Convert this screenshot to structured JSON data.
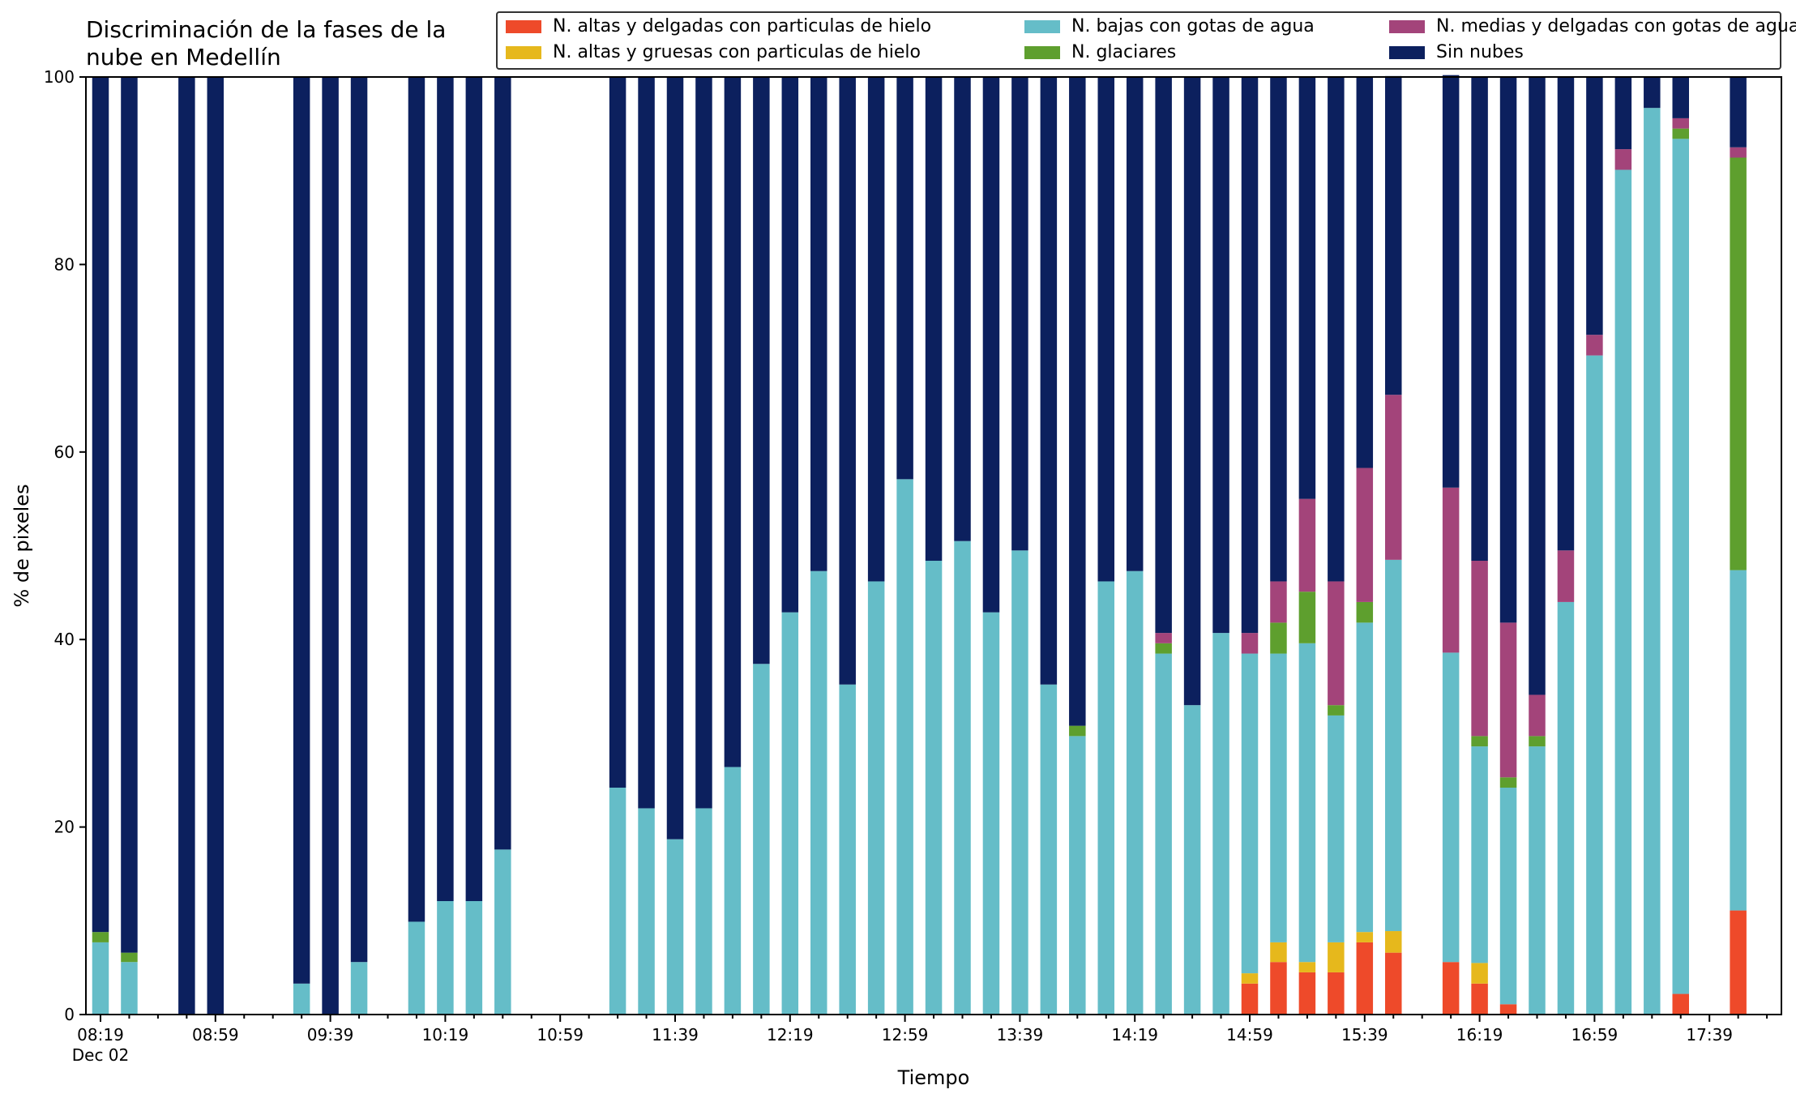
{
  "chart_data": {
    "type": "bar",
    "stacked": true,
    "title": "Discriminación de la fases de la nube en Medellín",
    "xlabel": "Tiempo",
    "ylabel": "% de pixeles",
    "ylim": [
      0,
      100
    ],
    "yticks": [
      0,
      20,
      40,
      60,
      80,
      100
    ],
    "xtick_labels": [
      "08:19",
      "08:59",
      "09:39",
      "10:19",
      "10:59",
      "11:39",
      "12:19",
      "12:59",
      "13:39",
      "14:19",
      "14:59",
      "15:39",
      "16:19",
      "16:59",
      "17:39"
    ],
    "xtick_sublabel": "Dec 02",
    "x_interval_minutes": 10,
    "legend_position": "top",
    "categories": [
      "08:19",
      "08:29",
      "08:49",
      "08:59",
      "09:29",
      "09:39",
      "09:49",
      "10:09",
      "10:19",
      "10:29",
      "10:39",
      "11:19",
      "11:29",
      "11:39",
      "11:49",
      "11:59",
      "12:09",
      "12:19",
      "12:29",
      "12:39",
      "12:49",
      "12:59",
      "13:09",
      "13:19",
      "13:29",
      "13:39",
      "13:49",
      "13:59",
      "14:09",
      "14:19",
      "14:29",
      "14:39",
      "14:49",
      "14:59",
      "15:09",
      "15:19",
      "15:29",
      "15:39",
      "15:49",
      "16:09",
      "16:19",
      "16:29",
      "16:39",
      "16:49",
      "16:59",
      "17:09",
      "17:19",
      "17:29",
      "17:49"
    ],
    "series": [
      {
        "name": "N. altas y delgadas con particulas de hielo",
        "color": "#ee4a2a",
        "values": [
          0,
          0,
          0,
          0,
          0,
          0,
          0,
          0,
          0,
          0,
          0,
          0,
          0,
          0,
          0,
          0,
          0,
          0,
          0,
          0,
          0,
          0,
          0,
          0,
          0,
          0,
          0,
          0,
          0,
          0,
          0,
          0,
          0,
          3.3,
          5.6,
          4.5,
          4.5,
          7.7,
          6.6,
          5.6,
          3.3,
          1.1,
          0,
          0,
          0,
          0,
          0,
          2.2,
          11.1
        ]
      },
      {
        "name": "N. altas y gruesas con particulas de hielo",
        "color": "#e6b81c",
        "values": [
          0,
          0,
          0,
          0,
          0,
          0,
          0,
          0,
          0,
          0,
          0,
          0,
          0,
          0,
          0,
          0,
          0,
          0,
          0,
          0,
          0,
          0,
          0,
          0,
          0,
          0,
          0,
          0,
          0,
          0,
          0,
          0,
          0,
          1.1,
          2.1,
          1.1,
          3.2,
          1.1,
          2.3,
          0,
          2.2,
          0,
          0,
          0,
          0,
          0,
          0,
          0,
          0
        ]
      },
      {
        "name": "N. bajas con gotas de agua",
        "color": "#65bdc8",
        "values": [
          7.7,
          5.6,
          0,
          0,
          3.3,
          0,
          5.6,
          9.9,
          12.1,
          12.1,
          17.6,
          24.2,
          22.0,
          18.7,
          22.0,
          26.4,
          37.4,
          42.9,
          47.3,
          35.2,
          46.2,
          57.1,
          48.4,
          50.5,
          42.9,
          49.5,
          35.2,
          29.7,
          46.2,
          47.3,
          38.5,
          33.0,
          40.7,
          34.1,
          30.8,
          34.0,
          24.2,
          33.0,
          39.6,
          33.0,
          23.1,
          23.1,
          28.6,
          44.0,
          70.3,
          90.1,
          96.7,
          91.2,
          36.3
        ]
      },
      {
        "name": "N. glaciares",
        "color": "#5e9f2e",
        "values": [
          1.1,
          1.0,
          0,
          0,
          0,
          0,
          0,
          0,
          0,
          0,
          0,
          0,
          0,
          0,
          0,
          0,
          0,
          0,
          0,
          0,
          0,
          0,
          0,
          0,
          0,
          0,
          0,
          1.1,
          0,
          0,
          1.1,
          0,
          0,
          0,
          3.3,
          5.5,
          1.1,
          2.2,
          0,
          0,
          1.1,
          1.1,
          1.1,
          0,
          0,
          0,
          0,
          1.1,
          44.0
        ]
      },
      {
        "name": "N. medias y delgadas con gotas de agua",
        "color": "#a3447a",
        "values": [
          0,
          0,
          0,
          0,
          0,
          0,
          0,
          0,
          0,
          0,
          0,
          0,
          0,
          0,
          0,
          0,
          0,
          0,
          0,
          0,
          0,
          0,
          0,
          0,
          0,
          0,
          0,
          0,
          0,
          0,
          1.1,
          0,
          0,
          2.2,
          4.4,
          9.9,
          13.2,
          14.3,
          17.6,
          17.6,
          18.7,
          16.5,
          4.4,
          5.5,
          2.2,
          2.2,
          0,
          1.1,
          1.1
        ]
      },
      {
        "name": "Sin nubes",
        "color": "#0c205e",
        "values": [
          91.2,
          93.4,
          100,
          100,
          96.7,
          100,
          94.4,
          90.1,
          87.9,
          87.9,
          82.4,
          75.8,
          78.0,
          81.3,
          78.0,
          73.6,
          62.6,
          57.1,
          52.7,
          64.8,
          53.8,
          42.9,
          51.6,
          49.5,
          57.1,
          50.5,
          64.8,
          69.2,
          53.8,
          52.7,
          59.3,
          67.0,
          59.3,
          59.3,
          53.8,
          45.0,
          53.8,
          41.7,
          34.0,
          44.0,
          51.6,
          58.2,
          65.9,
          50.5,
          27.5,
          7.7,
          3.3,
          4.4,
          7.5
        ]
      }
    ]
  }
}
